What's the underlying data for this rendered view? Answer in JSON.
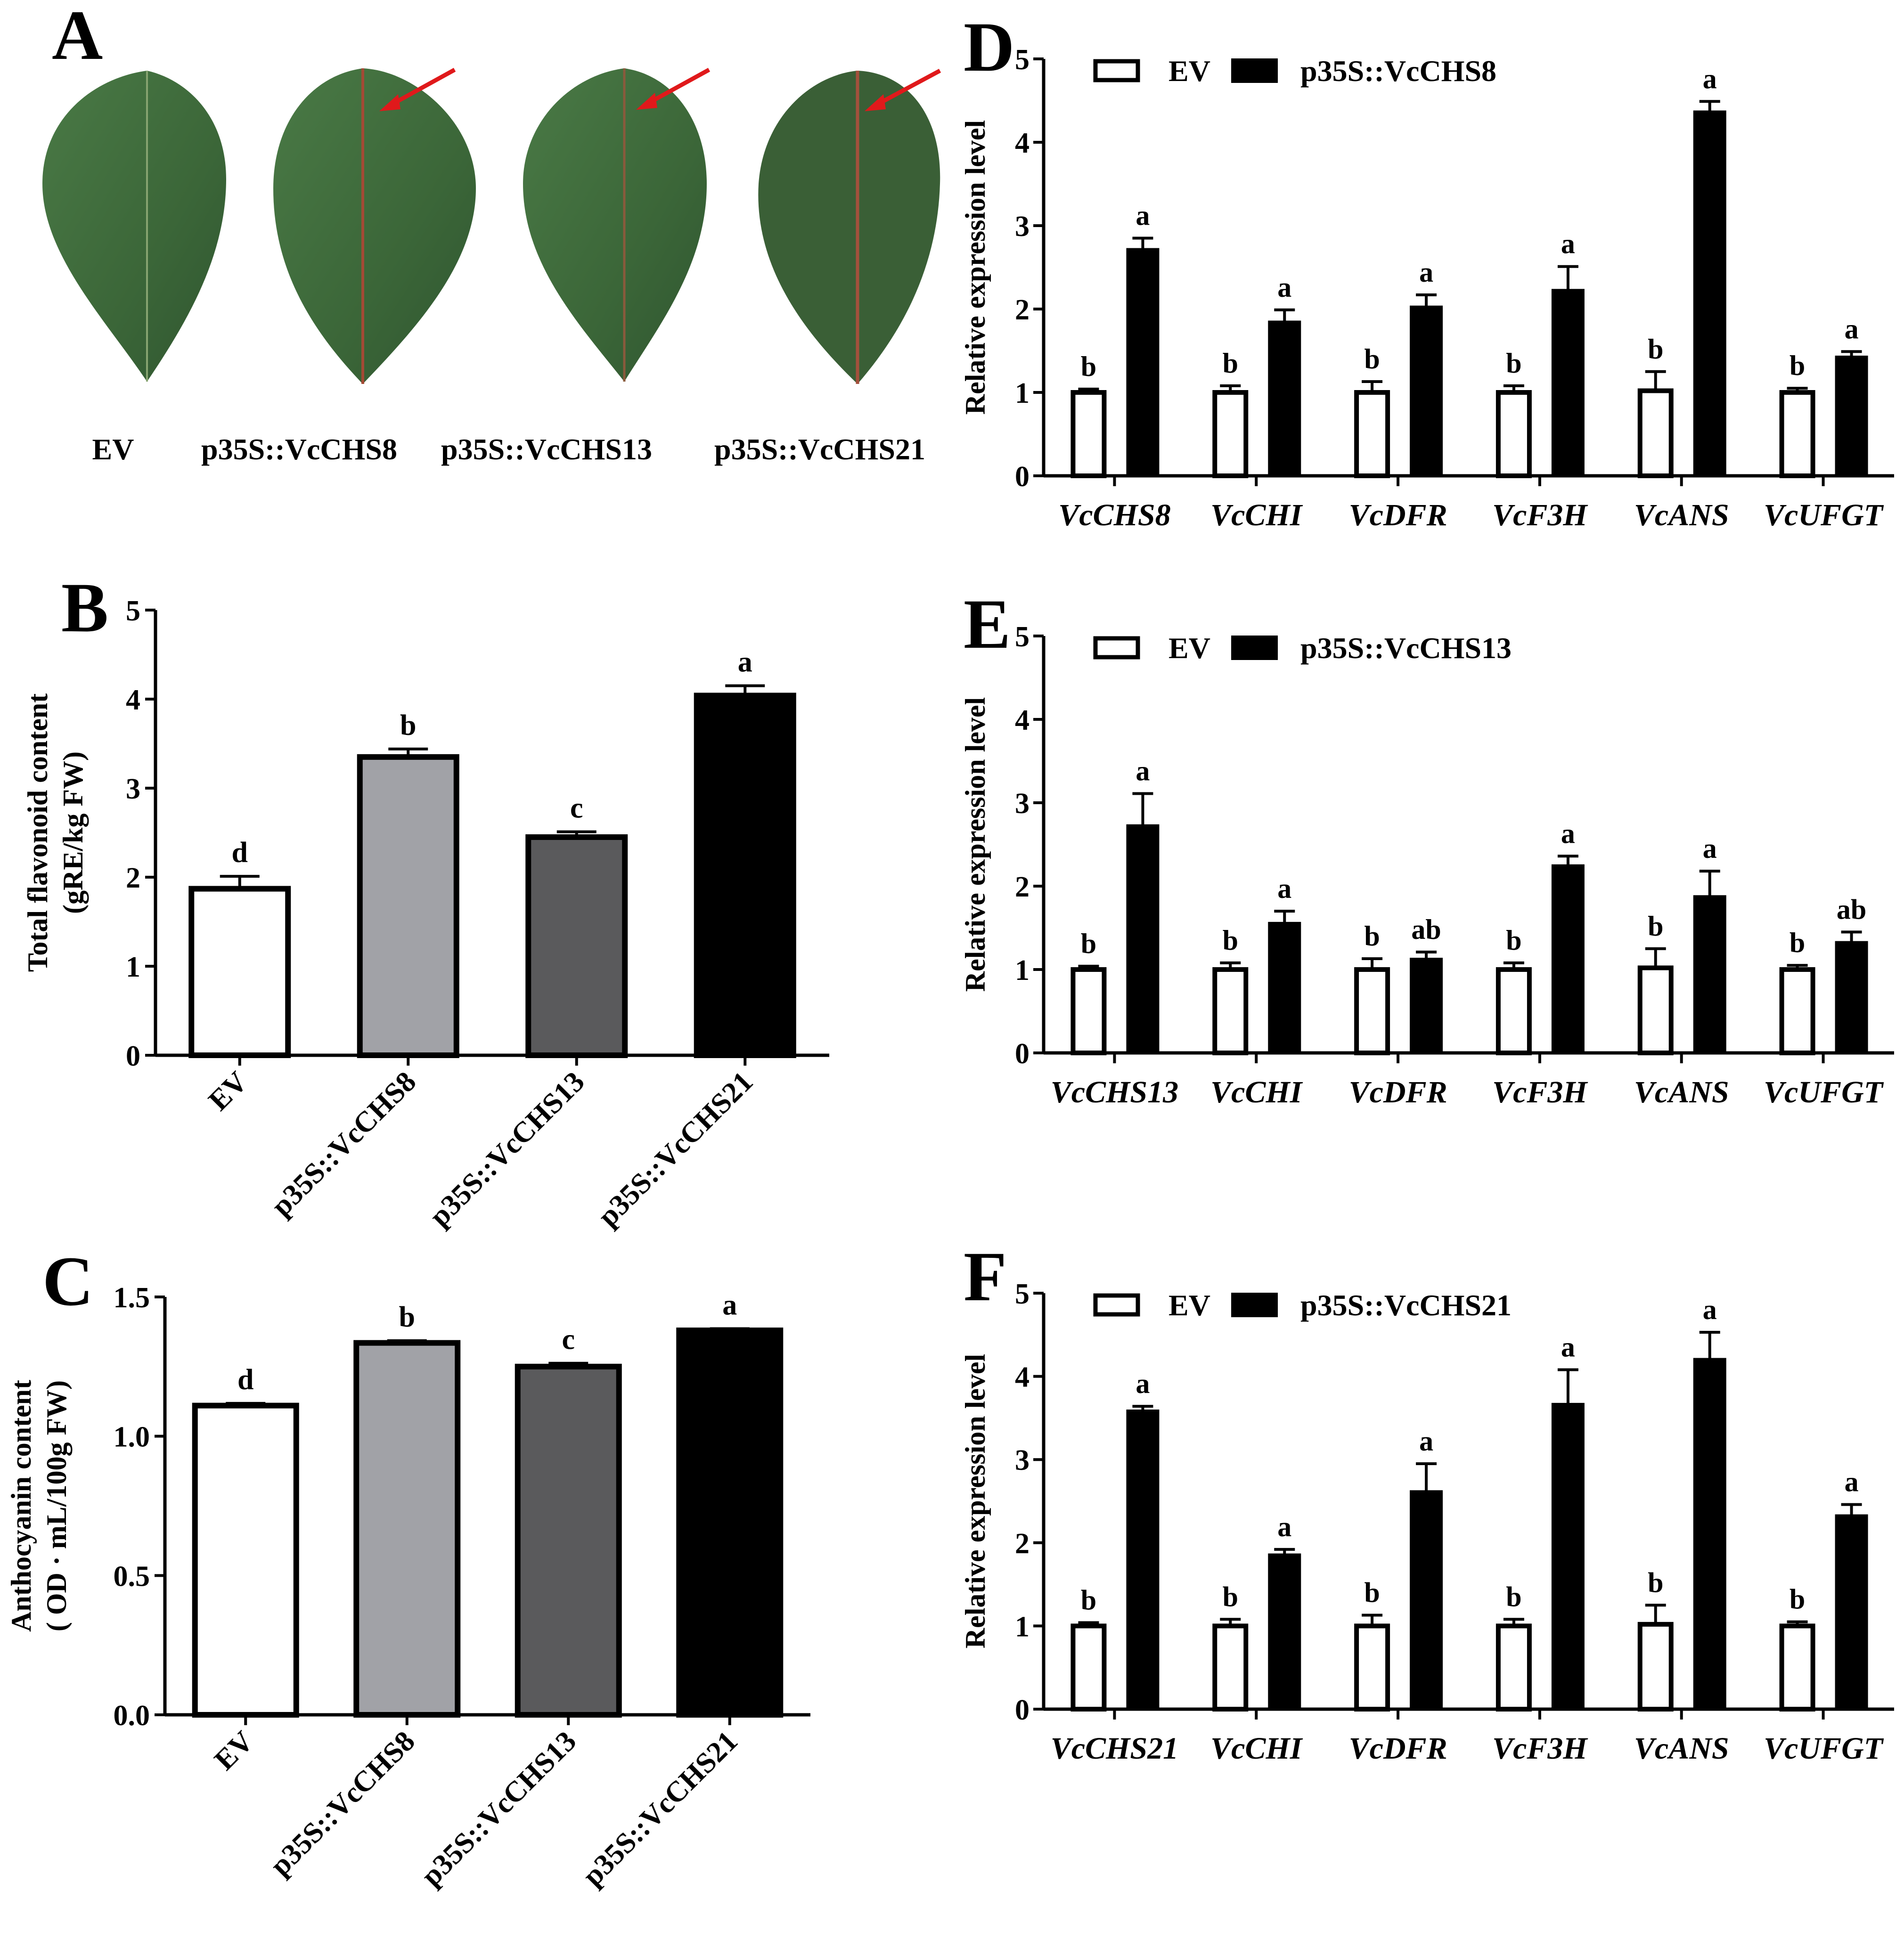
{
  "figure": {
    "panels": {
      "A": "A",
      "B": "B",
      "C": "C",
      "D": "D",
      "E": "E",
      "F": "F"
    }
  },
  "panel_a": {
    "labels": [
      "EV",
      "p35S::VcCHS8",
      "p35S::VcCHS13",
      "p35S::VcCHS21"
    ],
    "leaf_color": "#3f6b3c",
    "arrow_color": "#e0191b"
  },
  "chart_data": [
    {
      "id": "B",
      "type": "bar",
      "title": "",
      "ylabel_line1": "Total flavonoid content",
      "ylabel_line2": "(gRE/kg FW)",
      "categories": [
        "EV",
        "p35S::VcCHS8",
        "p35S::VcCHS13",
        "p35S::VcCHS21"
      ],
      "values": [
        1.87,
        3.35,
        2.45,
        4.04
      ],
      "errors": [
        0.14,
        0.09,
        0.06,
        0.11
      ],
      "sig_letters": [
        "d",
        "b",
        "c",
        "a"
      ],
      "bar_colors": [
        "#ffffff",
        "#a1a2a7",
        "#5a5a5c",
        "#000000"
      ],
      "ylim": [
        0,
        5
      ],
      "yticks": [
        "0",
        "1",
        "2",
        "3",
        "4",
        "5"
      ]
    },
    {
      "id": "C",
      "type": "bar",
      "title": "",
      "ylabel_line1": "Anthocyanin content",
      "ylabel_line2": "( OD · mL/100g FW)",
      "categories": [
        "EV",
        "p35S::VcCHS8",
        "p35S::VcCHS13",
        "p35S::VcCHS21"
      ],
      "values": [
        1.11,
        1.335,
        1.25,
        1.38
      ],
      "errors": [
        0.008,
        0.008,
        0.012,
        0.006
      ],
      "sig_letters": [
        "d",
        "b",
        "c",
        "a"
      ],
      "bar_colors": [
        "#ffffff",
        "#a1a2a7",
        "#5a5a5c",
        "#000000"
      ],
      "ylim": [
        0,
        1.5
      ],
      "yticks": [
        "0.0",
        "0.5",
        "1.0",
        "1.5"
      ]
    },
    {
      "id": "D",
      "type": "bar",
      "title": "",
      "ylabel": "Relative  expression  level",
      "legend": [
        "EV",
        "p35S::VcCHS8"
      ],
      "categories": [
        "VcCHS8",
        "VcCHI",
        "VcDFR",
        "VcF3H",
        "VcANS",
        "VcUFGT"
      ],
      "series": [
        {
          "name": "EV",
          "values": [
            1.0,
            1.0,
            1.0,
            1.0,
            1.02,
            1.0
          ],
          "errors": [
            0.04,
            0.08,
            0.13,
            0.08,
            0.23,
            0.05
          ],
          "letters": [
            "b",
            "b",
            "b",
            "b",
            "b",
            "b"
          ]
        },
        {
          "name": "p35S::VcCHS8",
          "values": [
            2.72,
            1.85,
            2.03,
            2.23,
            4.37,
            1.43
          ],
          "errors": [
            0.13,
            0.14,
            0.14,
            0.28,
            0.12,
            0.06
          ],
          "letters": [
            "a",
            "a",
            "a",
            "a",
            "a",
            "a"
          ]
        }
      ],
      "ylim": [
        0,
        5
      ],
      "yticks": [
        "0",
        "1",
        "2",
        "3",
        "4",
        "5"
      ]
    },
    {
      "id": "E",
      "type": "bar",
      "title": "",
      "ylabel": "Relative  expression  level",
      "legend": [
        "EV",
        "p35S::VcCHS13"
      ],
      "categories": [
        "VcCHS13",
        "VcCHI",
        "VcDFR",
        "VcF3H",
        "VcANS",
        "VcUFGT"
      ],
      "series": [
        {
          "name": "EV",
          "values": [
            1.0,
            1.0,
            1.0,
            1.0,
            1.02,
            1.0
          ],
          "errors": [
            0.04,
            0.08,
            0.13,
            0.08,
            0.23,
            0.05
          ],
          "letters": [
            "b",
            "b",
            "b",
            "b",
            "b",
            "b"
          ]
        },
        {
          "name": "p35S::VcCHS13",
          "values": [
            2.73,
            1.56,
            1.13,
            2.25,
            1.88,
            1.33
          ],
          "errors": [
            0.38,
            0.14,
            0.08,
            0.11,
            0.3,
            0.12
          ],
          "letters": [
            "a",
            "a",
            "ab",
            "a",
            "a",
            "ab"
          ]
        }
      ],
      "ylim": [
        0,
        5
      ],
      "yticks": [
        "0",
        "1",
        "2",
        "3",
        "4",
        "5"
      ]
    },
    {
      "id": "F",
      "type": "bar",
      "title": "",
      "ylabel": "Relative  expression level",
      "legend": [
        "EV",
        "p35S::VcCHS21"
      ],
      "categories": [
        "VcCHS21",
        "VcCHI",
        "VcDFR",
        "VcF3H",
        "VcANS",
        "VcUFGT"
      ],
      "series": [
        {
          "name": "EV",
          "values": [
            1.0,
            1.0,
            1.0,
            1.0,
            1.02,
            1.0
          ],
          "errors": [
            0.04,
            0.08,
            0.13,
            0.08,
            0.23,
            0.05
          ],
          "letters": [
            "b",
            "b",
            "b",
            "b",
            "b",
            "b"
          ]
        },
        {
          "name": "p35S::VcCHS21",
          "values": [
            3.59,
            1.86,
            2.62,
            3.67,
            4.21,
            2.33
          ],
          "errors": [
            0.05,
            0.06,
            0.33,
            0.41,
            0.32,
            0.13
          ],
          "letters": [
            "a",
            "a",
            "a",
            "a",
            "a",
            "a"
          ]
        }
      ],
      "ylim": [
        0,
        5
      ],
      "yticks": [
        "0",
        "1",
        "2",
        "3",
        "4",
        "5"
      ]
    }
  ]
}
